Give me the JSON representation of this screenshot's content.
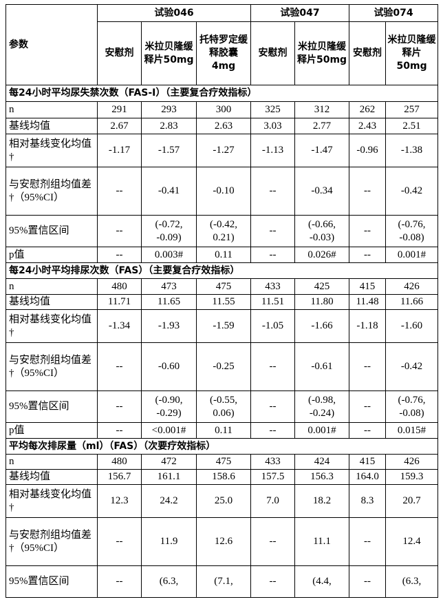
{
  "header": {
    "param": "参数",
    "trials": [
      "试验046",
      "试验047",
      "试验074"
    ],
    "cols": [
      "安慰剂",
      "米拉贝隆缓释片50mg",
      "托特罗定缓释胶囊4mg",
      "安慰剂",
      "米拉贝隆缓释片50mg",
      "安慰剂",
      "米拉贝隆缓释片50mg"
    ]
  },
  "sections": [
    {
      "title": "每24小时平均尿失禁次数（FAS-I）（主要复合疗效指标）",
      "rows": [
        {
          "label": "n",
          "values": [
            "291",
            "293",
            "300",
            "325",
            "312",
            "262",
            "257"
          ]
        },
        {
          "label": "基线均值",
          "values": [
            "2.67",
            "2.83",
            "2.63",
            "3.03",
            "2.77",
            "2.43",
            "2.51"
          ]
        },
        {
          "label": "相对基线变化均值†",
          "values": [
            "-1.17",
            "-1.57",
            "-1.27",
            "-1.13",
            "-1.47",
            "-0.96",
            "-1.38"
          ]
        },
        {
          "label": "与安慰剂组均值差†（95%CI）",
          "values": [
            "--",
            "-0.41",
            "-0.10",
            "--",
            "-0.34",
            "--",
            "-0.42"
          ]
        },
        {
          "label": "95%置信区间",
          "values": [
            "--",
            "(-0.72, -0.09)",
            "(-0.42, 0.21)",
            "--",
            "(-0.66, -0.03)",
            "--",
            "(-0.76, -0.08)"
          ]
        },
        {
          "label": "p值",
          "values": [
            "--",
            "0.003#",
            "0.11",
            "--",
            "0.026#",
            "--",
            "0.001#"
          ]
        }
      ]
    },
    {
      "title": "每24小时平均排尿次数（FAS）（主要复合疗效指标）",
      "rows": [
        {
          "label": "n",
          "values": [
            "480",
            "473",
            "475",
            "433",
            "425",
            "415",
            "426"
          ]
        },
        {
          "label": "基线均值",
          "values": [
            "11.71",
            "11.65",
            "11.55",
            "11.51",
            "11.80",
            "11.48",
            "11.66"
          ]
        },
        {
          "label": "相对基线变化均值†",
          "values": [
            "-1.34",
            "-1.93",
            "-1.59",
            "-1.05",
            "-1.66",
            "-1.18",
            "-1.60"
          ]
        },
        {
          "label": "与安慰剂组均值差†（95%CI）",
          "values": [
            "--",
            "-0.60",
            "-0.25",
            "--",
            "-0.61",
            "--",
            "-0.42"
          ]
        },
        {
          "label": "95%置信区间",
          "values": [
            "--",
            "(-0.90, -0.29)",
            "(-0.55, 0.06)",
            "--",
            "(-0.98, -0.24)",
            "--",
            "(-0.76, -0.08)"
          ]
        },
        {
          "label": "p值",
          "values": [
            "--",
            "<0.001#",
            "0.11",
            "--",
            "0.001#",
            "--",
            "0.015#"
          ]
        }
      ]
    },
    {
      "title": "平均每次排尿量（ml）（FAS）（次要疗效指标）",
      "rows": [
        {
          "label": "n",
          "values": [
            "480",
            "472",
            "475",
            "433",
            "424",
            "415",
            "426"
          ]
        },
        {
          "label": "基线均值",
          "values": [
            "156.7",
            "161.1",
            "158.6",
            "157.5",
            "156.3",
            "164.0",
            "159.3"
          ]
        },
        {
          "label": "相对基线变化均值†",
          "values": [
            "12.3",
            "24.2",
            "25.0",
            "7.0",
            "18.2",
            "8.3",
            "20.7"
          ]
        },
        {
          "label": "与安慰剂组均值差†（95%CI）",
          "values": [
            "--",
            "11.9",
            "12.6",
            "--",
            "11.1",
            "--",
            "12.4"
          ]
        },
        {
          "label": "95%置信区间",
          "values": [
            "--",
            "(6.3,",
            "(7.1,",
            "--",
            "(4.4,",
            "--",
            "(6.3,"
          ]
        }
      ]
    }
  ]
}
